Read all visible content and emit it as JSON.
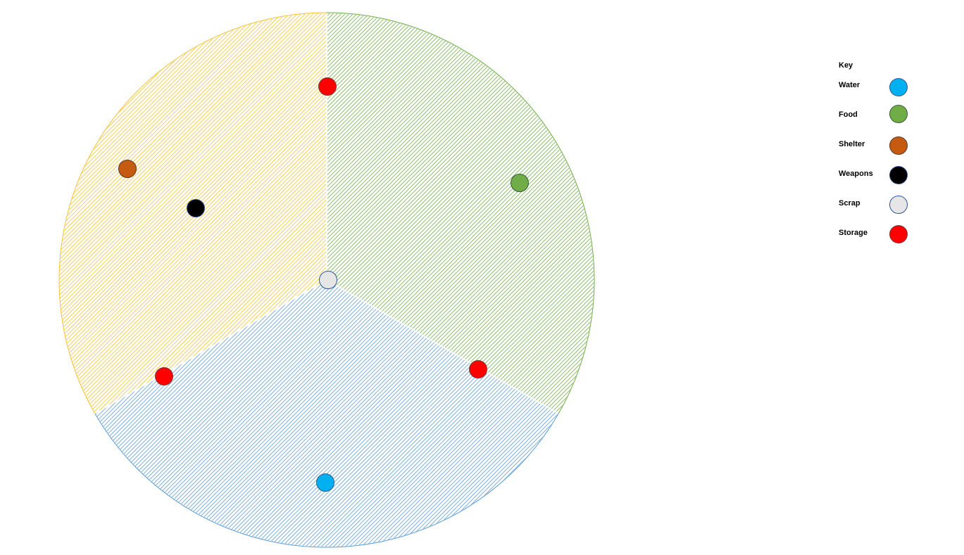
{
  "diagram": {
    "sectors": [
      {
        "name": "yellow-sector",
        "color": "#f2c230",
        "start_deg": 240,
        "end_deg": 360
      },
      {
        "name": "green-sector",
        "color": "#70ad47",
        "start_deg": 0,
        "end_deg": 120
      },
      {
        "name": "blue-sector",
        "color": "#5b9bd5",
        "start_deg": 120,
        "end_deg": 240
      }
    ],
    "markers": [
      {
        "name": "storage-marker-top",
        "type": "Storage"
      },
      {
        "name": "shelter-marker",
        "type": "Shelter"
      },
      {
        "name": "weapons-marker",
        "type": "Weapons"
      },
      {
        "name": "food-marker",
        "type": "Food"
      },
      {
        "name": "scrap-marker-center",
        "type": "Scrap"
      },
      {
        "name": "storage-marker-right",
        "type": "Storage"
      },
      {
        "name": "storage-marker-left",
        "type": "Storage"
      },
      {
        "name": "water-marker",
        "type": "Water"
      }
    ]
  },
  "legend": {
    "title": "Key",
    "items": [
      {
        "label": "Water",
        "color": "#00b0f0",
        "stroke": "#3a5a8a"
      },
      {
        "label": "Food",
        "color": "#70ad47",
        "stroke": "#3a5a3a"
      },
      {
        "label": "Shelter",
        "color": "#c55a11",
        "stroke": "#5a3a2a"
      },
      {
        "label": "Weapons",
        "color": "#000000",
        "stroke": "#2f4f8f"
      },
      {
        "label": "Scrap",
        "color": "#e7e6e6",
        "stroke": "#2f5597"
      },
      {
        "label": "Storage",
        "color": "#ff0000",
        "stroke": "#7a3a3a"
      }
    ]
  }
}
